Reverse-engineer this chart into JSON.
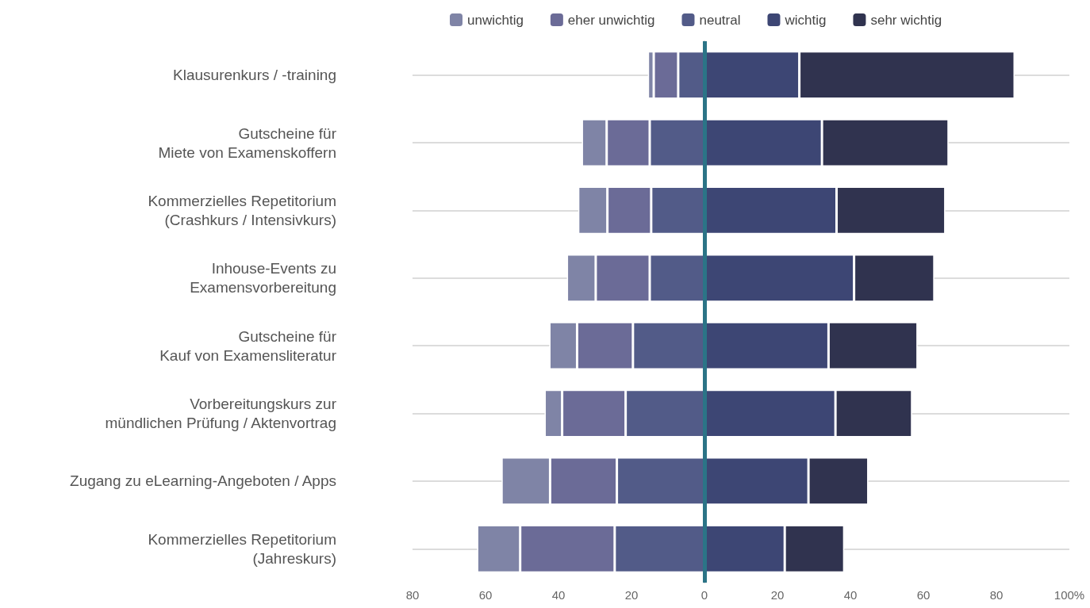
{
  "chart_data": {
    "type": "bar",
    "orientation": "horizontal",
    "stacked": true,
    "categories": [
      "Klausurenkurs / -training",
      "Gutscheine für\nMiete von Examenskoffern",
      "Kommerzielles Repetitorium\n(Crashkurs / Intensivkurs)",
      "Inhouse-Events zu\nExamensvorbereitung",
      "Gutscheine für\nKauf von Examensliteratur",
      "Vorbereitungskurs zur\nmündlichen Prüfung / Aktenvortrag",
      "Zugang zu eLearning-Angeboten / Apps",
      "Kommerzielles Repetitorium\n(Jahreskurs)"
    ],
    "series": [
      {
        "name": "neutral",
        "color": "#525b88",
        "values": [
          -7.2,
          -15,
          -14.6,
          -15,
          -19.6,
          -21.6,
          -24,
          -24.6
        ]
      },
      {
        "name": "eher unwichtig",
        "color": "#6b6b97",
        "values": [
          -6.7,
          -11.8,
          -12,
          -14.8,
          -15.3,
          -17.4,
          -18.3,
          -25.9
        ]
      },
      {
        "name": "unwichtig",
        "color": "#7f84a6",
        "values": [
          -1.6,
          -6.8,
          -8,
          -7.9,
          -7.6,
          -4.8,
          -13.3,
          -11.8
        ]
      },
      {
        "name": "wichtig",
        "color": "#3d4674",
        "values": [
          26,
          32.2,
          36.2,
          41,
          34,
          35.9,
          28.5,
          22
        ]
      },
      {
        "name": "sehr wichtig",
        "color": "#30334f",
        "values": [
          59,
          34.7,
          29.8,
          22,
          24.4,
          21,
          16.4,
          16.3
        ]
      }
    ],
    "xlim": [
      -80,
      100
    ],
    "xticks": [
      {
        "value": -80,
        "label": "80"
      },
      {
        "value": -60,
        "label": "60"
      },
      {
        "value": -40,
        "label": "40"
      },
      {
        "value": -20,
        "label": "20"
      },
      0,
      20,
      40,
      60,
      80,
      {
        "value": 100,
        "label": "100%"
      }
    ],
    "ref_lines": [
      {
        "axis": "x",
        "value": 0,
        "color": "#2b7487"
      }
    ],
    "grid": "y",
    "legend": "top"
  }
}
